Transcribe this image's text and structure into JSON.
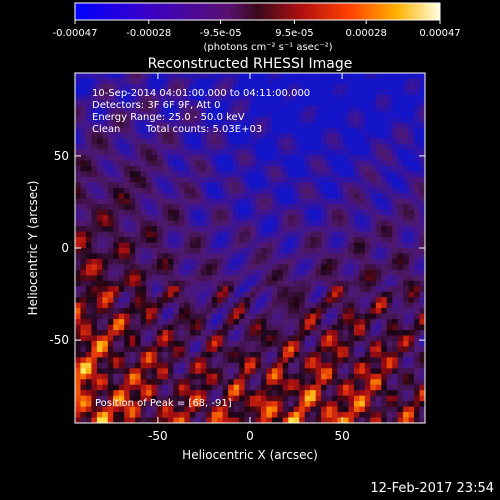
{
  "chart_data": {
    "type": "heatmap",
    "title": "Reconstructed RHESSI Image",
    "xlabel": "Heliocentric X (arcsec)",
    "ylabel": "Heliocentric Y (arcsec)",
    "xlim": [
      -95,
      95
    ],
    "ylim": [
      -95,
      95
    ],
    "x_ticks": [
      -50,
      0,
      50
    ],
    "y_ticks": [
      -50,
      0,
      50
    ],
    "colorbar": {
      "colormap": "blue-purple-red-orange-yellow-white",
      "range": [
        -0.00047,
        0.00047
      ],
      "tick_labels": [
        "-0.00047",
        "-0.00028",
        "-9.5e-05",
        "9.5e-05",
        "0.00028",
        "0.00047"
      ],
      "tick_values": [
        -0.00047,
        -0.00028,
        -9.5e-05,
        9.5e-05,
        0.00028,
        0.00047
      ],
      "unit_label": "(photons cm⁻² s⁻¹ asec⁻²)"
    },
    "annotations": {
      "time_range": "10-Sep-2014 04:01:00.000 to 04:11:00.000",
      "detectors": "Detectors: 3F 6F 9F, Att 0",
      "energy_range": "Energy Range: 25.0 - 50.0 keV",
      "clean_label": "Clean",
      "total_counts": "Total counts: 5.03E+03",
      "peak_position": "Position of Peak = [68, -91]"
    },
    "peak": {
      "x": 68,
      "y": -91
    },
    "grid": false
  },
  "footer": {
    "timestamp": "12-Feb-2017 23:54"
  }
}
